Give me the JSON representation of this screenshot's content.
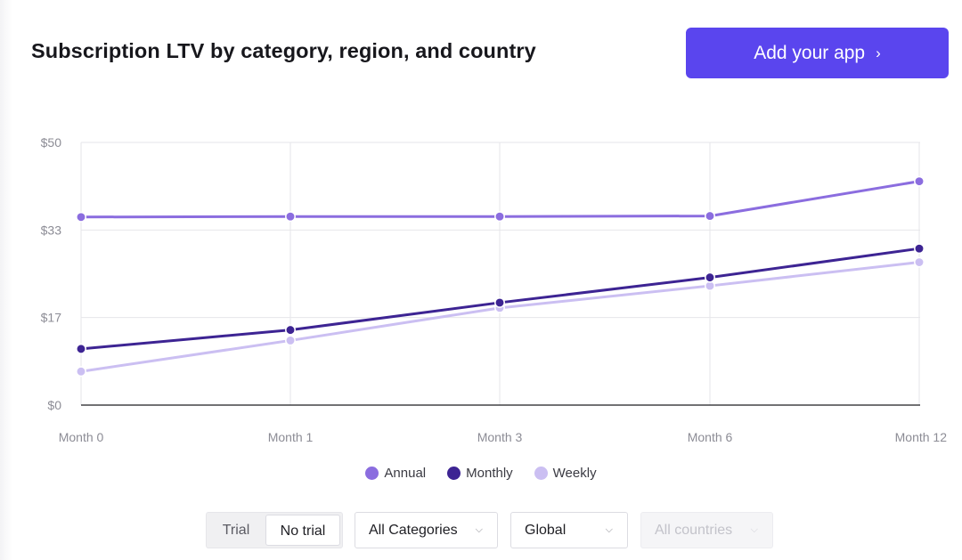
{
  "header": {
    "title": "Subscription LTV by category, region, and country",
    "cta_label": "Add your app",
    "cta_chevron": "›"
  },
  "chart_data": {
    "type": "line",
    "title": "Subscription LTV by category, region, and country",
    "xlabel": "",
    "ylabel": "",
    "categories": [
      "Month 0",
      "Month 1",
      "Month 3",
      "Month 6",
      "Month 12"
    ],
    "y_ticks": [
      "$0",
      "$17",
      "$33",
      "$50"
    ],
    "ylim": [
      0,
      50
    ],
    "grid": true,
    "legend_position": "bottom",
    "series": [
      {
        "name": "Annual",
        "color": "#8b6ddf",
        "values": [
          35.8,
          35.9,
          35.9,
          36.0,
          42.6
        ]
      },
      {
        "name": "Monthly",
        "color": "#3d2493",
        "values": [
          10.7,
          14.3,
          19.5,
          24.3,
          29.8
        ]
      },
      {
        "name": "Weekly",
        "color": "#cbbff2",
        "values": [
          6.4,
          12.3,
          18.5,
          22.7,
          27.2
        ]
      }
    ]
  },
  "filters": {
    "trial_label": "Trial",
    "no_trial_label": "No trial",
    "category": "All Categories",
    "region": "Global",
    "country": "All countries"
  }
}
